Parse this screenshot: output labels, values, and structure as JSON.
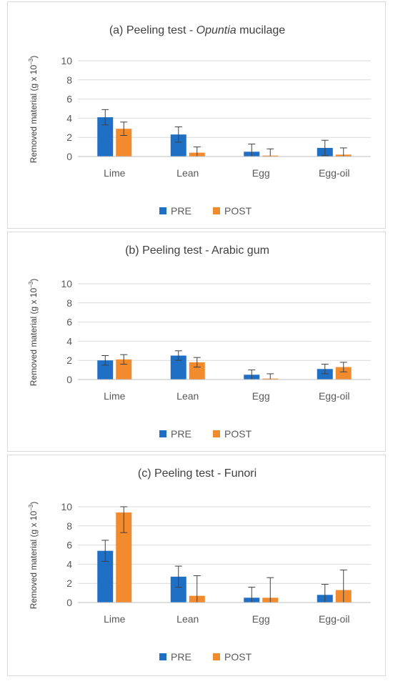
{
  "chart_data": [
    {
      "type": "bar",
      "title_prefix": "(a) Peeling test - ",
      "title_italic": "Opuntia",
      "title_suffix": "  mucilage",
      "ylabel_main": "Removed material (g x 10",
      "ylabel_sup": "−3",
      "ylabel_close": ")",
      "xlabel": "",
      "ylim": [
        0,
        10
      ],
      "yticks": [
        0,
        2,
        4,
        6,
        8,
        10
      ],
      "grid": true,
      "legend": "bottom",
      "categories": [
        "Lime",
        "Lean",
        "Egg",
        "Egg-oil"
      ],
      "series": [
        {
          "name": "PRE",
          "color": "#1f6fc5",
          "values": [
            4.1,
            2.3,
            0.5,
            0.9
          ],
          "errors": [
            0.8,
            0.8,
            0.8,
            0.8
          ]
        },
        {
          "name": "POST",
          "color": "#f28a2e",
          "values": [
            2.9,
            0.4,
            0.1,
            0.2
          ],
          "errors": [
            0.7,
            0.6,
            0.7,
            0.7
          ]
        }
      ]
    },
    {
      "type": "bar",
      "title_prefix": "(b) Peeling test - Arabic gum",
      "title_italic": "",
      "title_suffix": "",
      "ylabel_main": "Removed material (g x 10",
      "ylabel_sup": "−3",
      "ylabel_close": ")",
      "xlabel": "",
      "ylim": [
        0,
        10
      ],
      "yticks": [
        0,
        2,
        4,
        6,
        8,
        10
      ],
      "grid": true,
      "legend": "bottom",
      "categories": [
        "Lime",
        "Lean",
        "Egg",
        "Egg-oil"
      ],
      "series": [
        {
          "name": "PRE",
          "color": "#1f6fc5",
          "values": [
            2.0,
            2.5,
            0.5,
            1.1
          ],
          "errors": [
            0.5,
            0.5,
            0.5,
            0.5
          ]
        },
        {
          "name": "POST",
          "color": "#f28a2e",
          "values": [
            2.1,
            1.8,
            0.1,
            1.3
          ],
          "errors": [
            0.5,
            0.5,
            0.5,
            0.5
          ]
        }
      ]
    },
    {
      "type": "bar",
      "title_prefix": "(c) Peeling test - Funori",
      "title_italic": "",
      "title_suffix": "",
      "ylabel_main": "Removed material (g x 10",
      "ylabel_sup": "−3",
      "ylabel_close": ")",
      "xlabel": "",
      "ylim": [
        0,
        10
      ],
      "yticks": [
        0,
        2,
        4,
        6,
        8,
        10
      ],
      "grid": true,
      "legend": "bottom",
      "categories": [
        "Lime",
        "Lean",
        "Egg",
        "Egg-oil"
      ],
      "series": [
        {
          "name": "PRE",
          "color": "#1f6fc5",
          "values": [
            5.4,
            2.7,
            0.5,
            0.8
          ],
          "errors": [
            1.1,
            1.1,
            1.1,
            1.1
          ]
        },
        {
          "name": "POST",
          "color": "#f28a2e",
          "values": [
            9.4,
            0.7,
            0.5,
            1.3
          ],
          "errors": [
            2.1,
            2.1,
            2.1,
            2.1
          ]
        }
      ]
    }
  ]
}
